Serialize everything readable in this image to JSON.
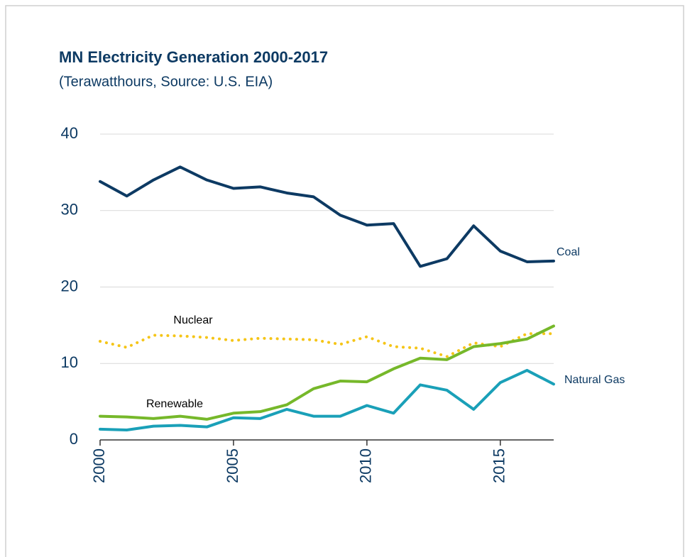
{
  "chart_data": {
    "type": "line",
    "title": "MN Electricity Generation 2000-2017",
    "subtitle": "(Terawatthours, Source: U.S. EIA)",
    "x": [
      2000,
      2001,
      2002,
      2003,
      2004,
      2005,
      2006,
      2007,
      2008,
      2009,
      2010,
      2011,
      2012,
      2013,
      2014,
      2015,
      2016,
      2017
    ],
    "xlim": [
      2000,
      2017
    ],
    "xticks": [
      2000,
      2005,
      2010,
      2015
    ],
    "ylim": [
      0,
      40
    ],
    "yticks": [
      0,
      10,
      20,
      30,
      40
    ],
    "grid": true,
    "series": [
      {
        "name": "Coal",
        "color": "#0d3a63",
        "style": "solid",
        "values": [
          33.8,
          31.9,
          34.0,
          35.7,
          34.0,
          32.9,
          33.1,
          32.3,
          31.8,
          29.4,
          28.1,
          28.3,
          22.7,
          23.7,
          28.0,
          24.7,
          23.3,
          23.4
        ]
      },
      {
        "name": "Nuclear",
        "color": "#f5c518",
        "style": "dotted",
        "values": [
          12.9,
          12.1,
          13.7,
          13.6,
          13.4,
          13.0,
          13.3,
          13.2,
          13.1,
          12.5,
          13.5,
          12.2,
          12.0,
          10.9,
          12.7,
          12.2,
          13.9,
          13.9
        ]
      },
      {
        "name": "Renewable",
        "color": "#76b82a",
        "style": "solid",
        "values": [
          3.1,
          3.0,
          2.8,
          3.1,
          2.7,
          3.5,
          3.7,
          4.6,
          6.7,
          7.7,
          7.6,
          9.3,
          10.7,
          10.5,
          12.2,
          12.6,
          13.2,
          14.9
        ]
      },
      {
        "name": "Natural Gas",
        "color": "#1aa0b8",
        "style": "solid",
        "values": [
          1.4,
          1.3,
          1.8,
          1.9,
          1.7,
          2.9,
          2.8,
          4.0,
          3.1,
          3.1,
          4.5,
          3.5,
          7.2,
          6.5,
          4.0,
          7.5,
          9.1,
          7.3
        ]
      }
    ]
  }
}
